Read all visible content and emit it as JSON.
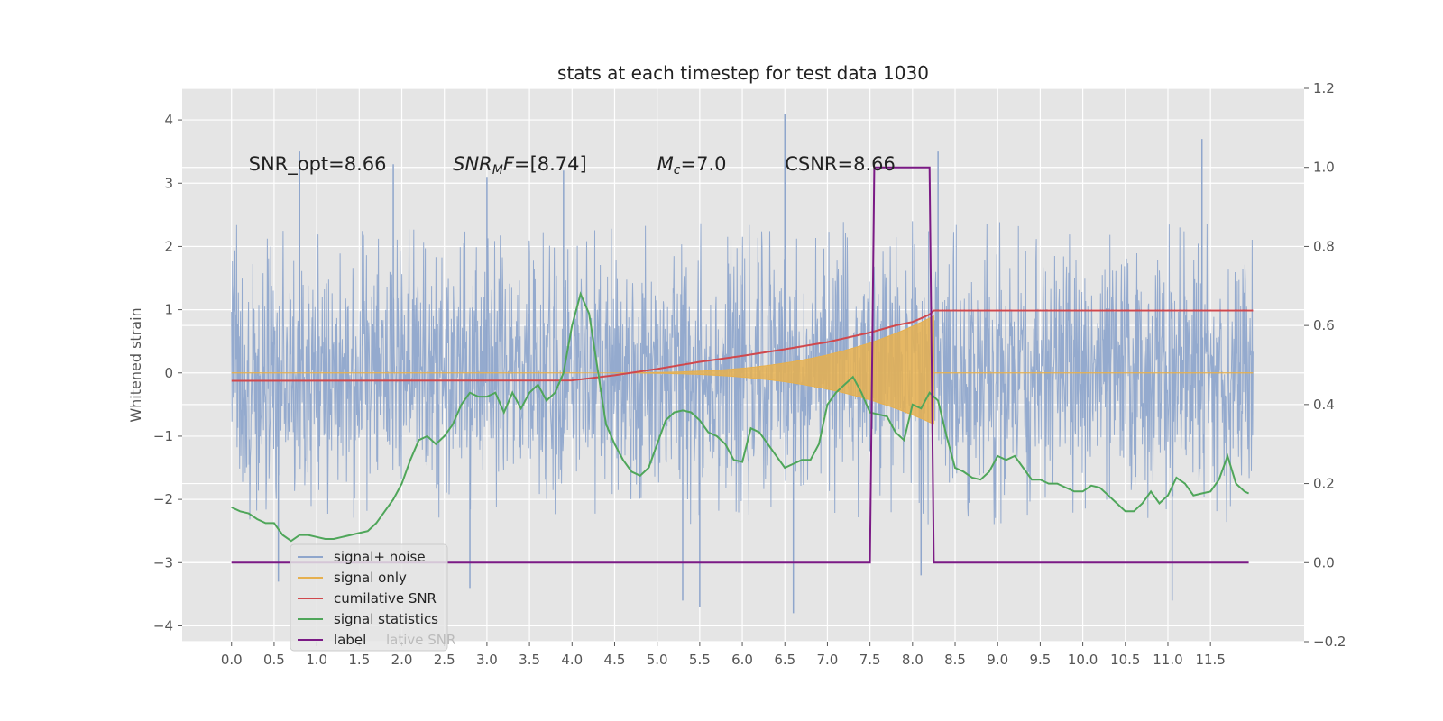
{
  "chart_data": {
    "type": "line",
    "title": "stats at each timestep for test data 1030",
    "ylabel": "Whitened strain",
    "y2label": "",
    "xlim": [
      -0.58,
      12.6
    ],
    "ylim": [
      -4.25,
      4.5
    ],
    "y2lim": [
      -0.2,
      1.2
    ],
    "x_ticks": [
      0.0,
      0.5,
      1.0,
      1.5,
      2.0,
      2.5,
      3.0,
      3.5,
      4.0,
      4.5,
      5.0,
      5.5,
      6.0,
      6.5,
      7.0,
      7.5,
      8.0,
      8.5,
      9.0,
      9.5,
      10.0,
      10.5,
      11.0,
      11.5
    ],
    "x_tick_labels": [
      "0.0",
      "0.5",
      "1.0",
      "1.5",
      "2.0",
      "2.5",
      "3.0",
      "3.5",
      "4.0",
      "4.5",
      "5.0",
      "5.5",
      "6.0",
      "6.5",
      "7.0",
      "7.5",
      "8.0",
      "8.5",
      "9.0",
      "9.5",
      "10.0",
      "10.5",
      "11.0",
      "11.5"
    ],
    "y_ticks": [
      -4,
      -3,
      -2,
      -1,
      0,
      1,
      2,
      3,
      4
    ],
    "y_tick_labels": [
      "−4",
      "−3",
      "−2",
      "−1",
      "0",
      "1",
      "2",
      "3",
      "4"
    ],
    "y2_ticks": [
      -0.2,
      0.0,
      0.2,
      0.4,
      0.6,
      0.8,
      1.0,
      1.2
    ],
    "y2_tick_labels": [
      "−0.2",
      "0.0",
      "0.2",
      "0.4",
      "0.6",
      "0.8",
      "1.0",
      "1.2"
    ],
    "grid": true,
    "legend_position": "lower-left",
    "annotations": [
      {
        "name": "snr-opt",
        "text": "SNR_opt=8.66",
        "x": 0.2,
        "y": 3.2
      },
      {
        "name": "snr-mf",
        "text": "SNR_MF=[8.74]",
        "x": 2.6,
        "y": 3.2
      },
      {
        "name": "mc",
        "text": "M_c=7.0",
        "x": 5.0,
        "y": 3.2
      },
      {
        "name": "csnr",
        "text": "CSNR=8.66",
        "x": 6.5,
        "y": 3.2
      }
    ],
    "series": [
      {
        "name": "signal+ noise",
        "axis": "left",
        "color": "#8fa6cc",
        "kind": "noise",
        "x_range": [
          0.0,
          12.0
        ],
        "sigma": 0.95,
        "envelope_max": 2.4,
        "spikes": [
          {
            "x": 0.8,
            "y": 3.5
          },
          {
            "x": 1.9,
            "y": 3.3
          },
          {
            "x": 3.0,
            "y": 3.1
          },
          {
            "x": 3.9,
            "y": 3.2
          },
          {
            "x": 6.5,
            "y": 4.1
          },
          {
            "x": 6.0,
            "y": 1.4
          },
          {
            "x": 8.3,
            "y": 3.5
          },
          {
            "x": 11.4,
            "y": 3.7
          },
          {
            "x": 0.55,
            "y": -3.3
          },
          {
            "x": 2.8,
            "y": -3.4
          },
          {
            "x": 5.5,
            "y": -3.7
          },
          {
            "x": 6.6,
            "y": -3.8
          },
          {
            "x": 8.1,
            "y": -3.2
          },
          {
            "x": 11.05,
            "y": -3.6
          },
          {
            "x": 5.3,
            "y": -3.6
          }
        ]
      },
      {
        "name": "signal only",
        "axis": "left",
        "color": "#e6b04f",
        "kind": "chirp",
        "start": 4.1,
        "merger": 8.25,
        "max_amp": 0.9
      },
      {
        "name": "cumilative SNR",
        "axis": "right",
        "color": "#d0484d",
        "x": [
          0.0,
          4.0,
          4.5,
          5.0,
          5.5,
          6.0,
          6.5,
          7.0,
          7.5,
          7.8,
          8.0,
          8.1,
          8.2,
          8.25,
          8.4,
          12.0
        ],
        "values": [
          0.46,
          0.461,
          0.474,
          0.49,
          0.508,
          0.523,
          0.54,
          0.558,
          0.582,
          0.6,
          0.609,
          0.618,
          0.628,
          0.638,
          0.638,
          0.638
        ]
      },
      {
        "name": "signal statistics",
        "axis": "right",
        "color": "#4fa65a",
        "x": [
          0.0,
          0.1,
          0.2,
          0.3,
          0.4,
          0.5,
          0.6,
          0.7,
          0.8,
          0.9,
          1.0,
          1.1,
          1.2,
          1.3,
          1.4,
          1.5,
          1.6,
          1.7,
          1.8,
          1.9,
          2.0,
          2.1,
          2.2,
          2.3,
          2.4,
          2.5,
          2.6,
          2.7,
          2.8,
          2.9,
          3.0,
          3.1,
          3.2,
          3.3,
          3.4,
          3.5,
          3.6,
          3.7,
          3.8,
          3.9,
          4.0,
          4.1,
          4.2,
          4.3,
          4.4,
          4.5,
          4.6,
          4.7,
          4.8,
          4.9,
          5.0,
          5.1,
          5.2,
          5.3,
          5.4,
          5.5,
          5.6,
          5.7,
          5.8,
          5.9,
          6.0,
          6.1,
          6.2,
          6.3,
          6.4,
          6.5,
          6.6,
          6.7,
          6.8,
          6.9,
          7.0,
          7.1,
          7.2,
          7.3,
          7.4,
          7.5,
          7.6,
          7.7,
          7.8,
          7.9,
          8.0,
          8.1,
          8.2,
          8.3,
          8.4,
          8.5,
          8.6,
          8.7,
          8.8,
          8.9,
          9.0,
          9.1,
          9.2,
          9.3,
          9.4,
          9.5,
          9.6,
          9.7,
          9.8,
          9.9,
          10.0,
          10.1,
          10.2,
          10.3,
          10.4,
          10.5,
          10.6,
          10.7,
          10.8,
          10.9,
          11.0,
          11.1,
          11.2,
          11.3,
          11.4,
          11.5,
          11.6,
          11.7,
          11.8,
          11.9,
          11.95
        ],
        "values": [
          0.14,
          0.13,
          0.125,
          0.11,
          0.1,
          0.1,
          0.07,
          0.055,
          0.07,
          0.07,
          0.065,
          0.06,
          0.06,
          0.065,
          0.07,
          0.075,
          0.08,
          0.1,
          0.13,
          0.16,
          0.2,
          0.26,
          0.31,
          0.32,
          0.3,
          0.32,
          0.35,
          0.4,
          0.43,
          0.42,
          0.42,
          0.43,
          0.38,
          0.43,
          0.39,
          0.43,
          0.45,
          0.41,
          0.43,
          0.48,
          0.6,
          0.68,
          0.63,
          0.49,
          0.35,
          0.3,
          0.26,
          0.23,
          0.22,
          0.24,
          0.3,
          0.36,
          0.38,
          0.385,
          0.38,
          0.36,
          0.33,
          0.32,
          0.3,
          0.26,
          0.255,
          0.34,
          0.33,
          0.3,
          0.27,
          0.24,
          0.25,
          0.26,
          0.26,
          0.3,
          0.4,
          0.43,
          0.45,
          0.47,
          0.43,
          0.38,
          0.375,
          0.37,
          0.33,
          0.31,
          0.4,
          0.39,
          0.43,
          0.41,
          0.32,
          0.24,
          0.23,
          0.215,
          0.21,
          0.23,
          0.27,
          0.26,
          0.27,
          0.24,
          0.21,
          0.21,
          0.2,
          0.2,
          0.19,
          0.18,
          0.18,
          0.195,
          0.19,
          0.17,
          0.15,
          0.13,
          0.13,
          0.15,
          0.18,
          0.15,
          0.17,
          0.215,
          0.2,
          0.17,
          0.175,
          0.18,
          0.21,
          0.27,
          0.2,
          0.18,
          0.175
        ]
      },
      {
        "name": "label",
        "axis": "right",
        "color": "#7b1a85",
        "x": [
          0.0,
          7.5,
          7.55,
          8.2,
          8.25,
          11.95
        ],
        "values": [
          0.0,
          0.0,
          1.0,
          1.0,
          0.0,
          0.0
        ]
      }
    ],
    "legend_entries": [
      {
        "label": "signal+ noise",
        "color": "#8fa6cc"
      },
      {
        "label": "signal only",
        "color": "#e6b04f"
      },
      {
        "label": "cumilative SNR",
        "color": "#d0484d"
      },
      {
        "label": "signal statistics",
        "color": "#4fa65a"
      },
      {
        "label": "label",
        "color": "#7b1a85"
      }
    ],
    "legend_hidden_text": "lative SNR"
  }
}
